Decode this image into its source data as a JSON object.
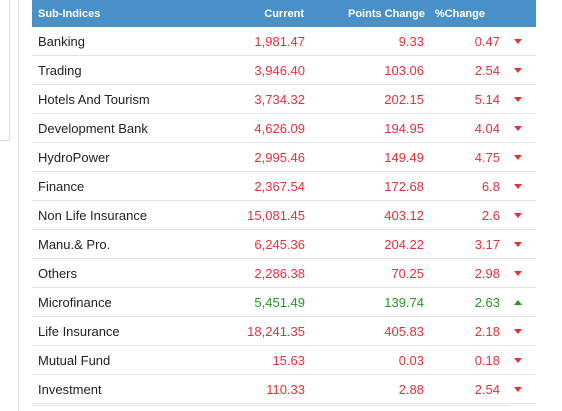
{
  "header": {
    "name": "Sub-Indices",
    "current": "Current",
    "points_change": "Points Change",
    "pct_change": "%Change"
  },
  "colors": {
    "header_bg": "#4a90c8",
    "down": "#e8303a",
    "up": "#1f9a1f"
  },
  "rows": [
    {
      "name": "Banking",
      "current": "1,981.47",
      "points": "9.33",
      "pct": "0.47",
      "trend": "down"
    },
    {
      "name": "Trading",
      "current": "3,946.40",
      "points": "103.06",
      "pct": "2.54",
      "trend": "down"
    },
    {
      "name": "Hotels And Tourism",
      "current": "3,734.32",
      "points": "202.15",
      "pct": "5.14",
      "trend": "down"
    },
    {
      "name": "Development Bank",
      "current": "4,626.09",
      "points": "194.95",
      "pct": "4.04",
      "trend": "down"
    },
    {
      "name": "HydroPower",
      "current": "2,995.46",
      "points": "149.49",
      "pct": "4.75",
      "trend": "down"
    },
    {
      "name": "Finance",
      "current": "2,367.54",
      "points": "172.68",
      "pct": "6.8",
      "trend": "down"
    },
    {
      "name": "Non Life Insurance",
      "current": "15,081.45",
      "points": "403.12",
      "pct": "2.6",
      "trend": "down"
    },
    {
      "name": "Manu.& Pro.",
      "current": "6,245.36",
      "points": "204.22",
      "pct": "3.17",
      "trend": "down"
    },
    {
      "name": "Others",
      "current": "2,286.38",
      "points": "70.25",
      "pct": "2.98",
      "trend": "down"
    },
    {
      "name": "Microfinance",
      "current": "5,451.49",
      "points": "139.74",
      "pct": "2.63",
      "trend": "up"
    },
    {
      "name": "Life Insurance",
      "current": "18,241.35",
      "points": "405.83",
      "pct": "2.18",
      "trend": "down"
    },
    {
      "name": "Mutual Fund",
      "current": "15.63",
      "points": "0.03",
      "pct": "0.18",
      "trend": "down"
    },
    {
      "name": "Investment",
      "current": "110.33",
      "points": "2.88",
      "pct": "2.54",
      "trend": "down"
    }
  ]
}
